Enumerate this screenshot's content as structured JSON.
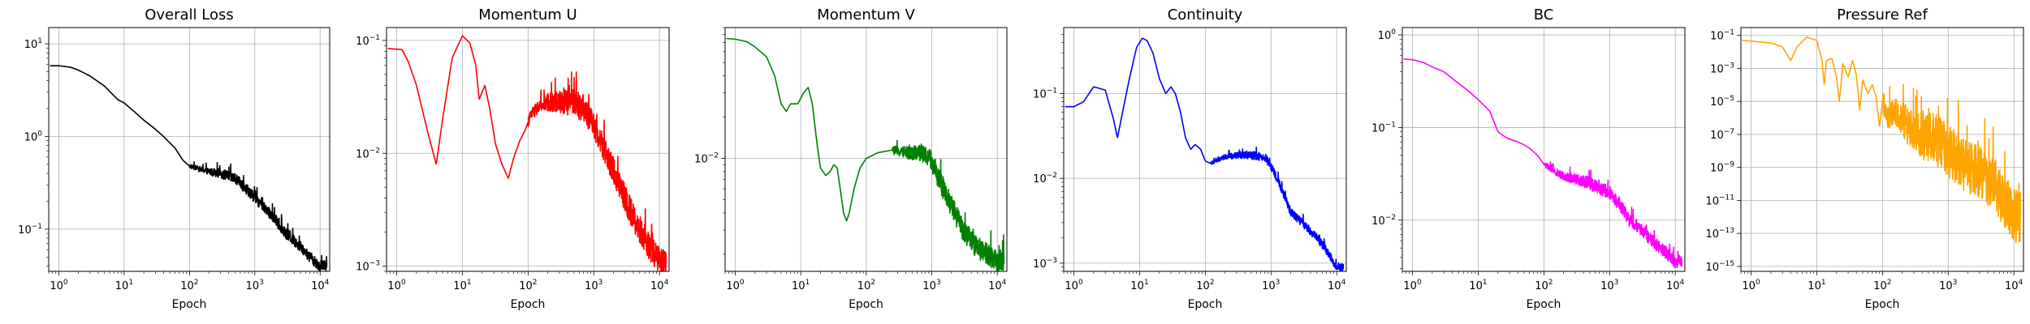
{
  "chart_data": [
    {
      "type": "line",
      "title": "Overall Loss",
      "xlabel": "Epoch",
      "xscale": "log",
      "yscale": "log",
      "xlim": [
        0.7,
        14000
      ],
      "ylim": [
        0.035,
        15
      ],
      "xticks": [
        1,
        10,
        100,
        1000,
        10000
      ],
      "yticks": [
        0.1,
        1,
        10
      ],
      "grid": true,
      "color": "#000000",
      "noise_from": 100,
      "noise_dex": 0.06,
      "points": [
        [
          1,
          5.8
        ],
        [
          1.5,
          5.6
        ],
        [
          2,
          5.2
        ],
        [
          3,
          4.5
        ],
        [
          5,
          3.5
        ],
        [
          8,
          2.5
        ],
        [
          10,
          2.3
        ],
        [
          15,
          1.8
        ],
        [
          20,
          1.5
        ],
        [
          30,
          1.2
        ],
        [
          40,
          1.0
        ],
        [
          60,
          0.75
        ],
        [
          80,
          0.55
        ],
        [
          100,
          0.48
        ],
        [
          150,
          0.44
        ],
        [
          200,
          0.42
        ],
        [
          300,
          0.4
        ],
        [
          500,
          0.35
        ],
        [
          700,
          0.28
        ],
        [
          1000,
          0.22
        ],
        [
          2000,
          0.13
        ],
        [
          3000,
          0.09
        ],
        [
          5000,
          0.065
        ],
        [
          7000,
          0.05
        ],
        [
          10000,
          0.04
        ]
      ]
    },
    {
      "type": "line",
      "title": "Momentum U",
      "xlabel": "Epoch",
      "xscale": "log",
      "yscale": "log",
      "xlim": [
        0.7,
        14000
      ],
      "ylim": [
        0.0009,
        0.13
      ],
      "xticks": [
        1,
        10,
        100,
        1000,
        10000
      ],
      "yticks": [
        0.001,
        0.01,
        0.1
      ],
      "grid": true,
      "color": "#ff0000",
      "noise_from": 100,
      "noise_dex": 0.12,
      "points": [
        [
          0.7,
          0.085
        ],
        [
          1.2,
          0.083
        ],
        [
          1.5,
          0.065
        ],
        [
          2,
          0.04
        ],
        [
          3,
          0.015
        ],
        [
          4,
          0.008
        ],
        [
          5,
          0.02
        ],
        [
          7,
          0.07
        ],
        [
          10,
          0.11
        ],
        [
          13,
          0.095
        ],
        [
          16,
          0.06
        ],
        [
          18,
          0.03
        ],
        [
          22,
          0.04
        ],
        [
          26,
          0.025
        ],
        [
          32,
          0.012
        ],
        [
          40,
          0.008
        ],
        [
          50,
          0.006
        ],
        [
          60,
          0.009
        ],
        [
          75,
          0.013
        ],
        [
          90,
          0.016
        ],
        [
          110,
          0.022
        ],
        [
          150,
          0.026
        ],
        [
          200,
          0.028
        ],
        [
          300,
          0.029
        ],
        [
          500,
          0.028
        ],
        [
          700,
          0.025
        ],
        [
          1000,
          0.018
        ],
        [
          1500,
          0.01
        ],
        [
          2000,
          0.007
        ],
        [
          3000,
          0.004
        ],
        [
          5000,
          0.002
        ],
        [
          7000,
          0.0015
        ],
        [
          10000,
          0.0011
        ]
      ]
    },
    {
      "type": "line",
      "title": "Momentum V",
      "xlabel": "Epoch",
      "xscale": "log",
      "yscale": "log",
      "xlim": [
        0.7,
        14000
      ],
      "ylim": [
        0.0015,
        0.09
      ],
      "xticks": [
        1,
        10,
        100,
        1000,
        10000
      ],
      "yticks": [
        0.01
      ],
      "grid": true,
      "color": "#008000",
      "noise_from": 250,
      "noise_dex": 0.08,
      "points": [
        [
          0.7,
          0.075
        ],
        [
          1,
          0.074
        ],
        [
          1.5,
          0.071
        ],
        [
          2,
          0.065
        ],
        [
          3,
          0.055
        ],
        [
          4,
          0.04
        ],
        [
          5,
          0.025
        ],
        [
          6,
          0.022
        ],
        [
          7,
          0.025
        ],
        [
          9,
          0.025
        ],
        [
          11,
          0.03
        ],
        [
          13,
          0.033
        ],
        [
          15,
          0.025
        ],
        [
          18,
          0.012
        ],
        [
          20,
          0.0085
        ],
        [
          24,
          0.0075
        ],
        [
          28,
          0.008
        ],
        [
          32,
          0.009
        ],
        [
          36,
          0.0085
        ],
        [
          40,
          0.006
        ],
        [
          45,
          0.004
        ],
        [
          50,
          0.0035
        ],
        [
          55,
          0.004
        ],
        [
          65,
          0.006
        ],
        [
          80,
          0.0085
        ],
        [
          100,
          0.01
        ],
        [
          150,
          0.011
        ],
        [
          250,
          0.0115
        ],
        [
          400,
          0.011
        ],
        [
          700,
          0.011
        ],
        [
          1000,
          0.0095
        ],
        [
          1500,
          0.006
        ],
        [
          2000,
          0.0045
        ],
        [
          3000,
          0.003
        ],
        [
          5000,
          0.0022
        ],
        [
          7000,
          0.002
        ],
        [
          10000,
          0.0018
        ]
      ]
    },
    {
      "type": "line",
      "title": "Continuity",
      "xlabel": "Epoch",
      "xscale": "log",
      "yscale": "log",
      "xlim": [
        0.7,
        14000
      ],
      "ylim": [
        0.0008,
        0.6
      ],
      "xticks": [
        1,
        10,
        100,
        1000,
        10000
      ],
      "yticks": [
        0.001,
        0.01,
        0.1
      ],
      "grid": true,
      "color": "#0000ff",
      "noise_from": 120,
      "noise_dex": 0.05,
      "points": [
        [
          0.7,
          0.07
        ],
        [
          1,
          0.07
        ],
        [
          1.4,
          0.08
        ],
        [
          2,
          0.12
        ],
        [
          3,
          0.11
        ],
        [
          4,
          0.05
        ],
        [
          4.6,
          0.03
        ],
        [
          5.5,
          0.06
        ],
        [
          7,
          0.15
        ],
        [
          9,
          0.35
        ],
        [
          11,
          0.45
        ],
        [
          13,
          0.42
        ],
        [
          16,
          0.3
        ],
        [
          20,
          0.15
        ],
        [
          25,
          0.1
        ],
        [
          30,
          0.12
        ],
        [
          35,
          0.1
        ],
        [
          42,
          0.06
        ],
        [
          50,
          0.03
        ],
        [
          60,
          0.022
        ],
        [
          70,
          0.025
        ],
        [
          85,
          0.022
        ],
        [
          100,
          0.016
        ],
        [
          120,
          0.015
        ],
        [
          200,
          0.018
        ],
        [
          400,
          0.019
        ],
        [
          800,
          0.018
        ],
        [
          1000,
          0.014
        ],
        [
          1500,
          0.007
        ],
        [
          2000,
          0.004
        ],
        [
          3000,
          0.003
        ],
        [
          5000,
          0.002
        ],
        [
          7000,
          0.0014
        ],
        [
          10000,
          0.0009
        ]
      ]
    },
    {
      "type": "line",
      "title": "BC",
      "xlabel": "Epoch",
      "xscale": "log",
      "yscale": "log",
      "xlim": [
        0.7,
        14000
      ],
      "ylim": [
        0.0028,
        1.2
      ],
      "xticks": [
        1,
        10,
        100,
        1000,
        10000
      ],
      "yticks": [
        0.01,
        0.1,
        1
      ],
      "grid": true,
      "color": "#ff00ff",
      "noise_from": 100,
      "noise_dex": 0.07,
      "points": [
        [
          0.7,
          0.55
        ],
        [
          1,
          0.54
        ],
        [
          1.5,
          0.5
        ],
        [
          2,
          0.45
        ],
        [
          3,
          0.4
        ],
        [
          5,
          0.3
        ],
        [
          7,
          0.25
        ],
        [
          10,
          0.2
        ],
        [
          15,
          0.15
        ],
        [
          20,
          0.09
        ],
        [
          25,
          0.08
        ],
        [
          30,
          0.075
        ],
        [
          40,
          0.07
        ],
        [
          50,
          0.065
        ],
        [
          60,
          0.06
        ],
        [
          80,
          0.05
        ],
        [
          100,
          0.04
        ],
        [
          150,
          0.033
        ],
        [
          200,
          0.03
        ],
        [
          300,
          0.028
        ],
        [
          500,
          0.025
        ],
        [
          700,
          0.022
        ],
        [
          1000,
          0.02
        ],
        [
          1500,
          0.014
        ],
        [
          2000,
          0.01
        ],
        [
          3000,
          0.008
        ],
        [
          5000,
          0.0055
        ],
        [
          7000,
          0.0045
        ],
        [
          10000,
          0.0036
        ]
      ]
    },
    {
      "type": "line",
      "title": "Pressure Ref",
      "xlabel": "Epoch",
      "xscale": "log",
      "yscale": "log",
      "xlim": [
        0.7,
        14000
      ],
      "ylim": [
        5e-16,
        0.3
      ],
      "xticks": [
        1,
        10,
        100,
        1000,
        10000
      ],
      "yticks": [
        1e-15,
        1e-13,
        1e-11,
        1e-09,
        1e-07,
        1e-05,
        0.001,
        0.1
      ],
      "grid": true,
      "color": "#ffa500",
      "noise_from": 100,
      "noise_dex": 1.6,
      "points": [
        [
          0.7,
          0.05
        ],
        [
          1,
          0.045
        ],
        [
          2,
          0.035
        ],
        [
          3,
          0.02
        ],
        [
          4,
          0.003
        ],
        [
          5,
          0.02
        ],
        [
          7,
          0.08
        ],
        [
          10,
          0.05
        ],
        [
          12,
          0.003
        ],
        [
          13,
          0.0001
        ],
        [
          14,
          0.003
        ],
        [
          17,
          0.004
        ],
        [
          20,
          0.0003
        ],
        [
          22,
          1e-05
        ],
        [
          25,
          0.002
        ],
        [
          30,
          0.0003
        ],
        [
          35,
          0.003
        ],
        [
          40,
          0.0004
        ],
        [
          45,
          3e-06
        ],
        [
          50,
          0.0002
        ],
        [
          60,
          3e-05
        ],
        [
          70,
          0.0001
        ],
        [
          80,
          2e-05
        ],
        [
          90,
          3e-07
        ],
        [
          100,
          1e-05
        ],
        [
          120,
          1e-06
        ],
        [
          150,
          3e-06
        ],
        [
          200,
          1e-06
        ],
        [
          300,
          1e-07
        ],
        [
          500,
          1e-07
        ],
        [
          1000,
          1e-08
        ],
        [
          2000,
          1e-09
        ],
        [
          3000,
          5e-10
        ],
        [
          5000,
          1e-10
        ],
        [
          7000,
          1e-11
        ],
        [
          10000,
          1e-12
        ]
      ]
    }
  ]
}
